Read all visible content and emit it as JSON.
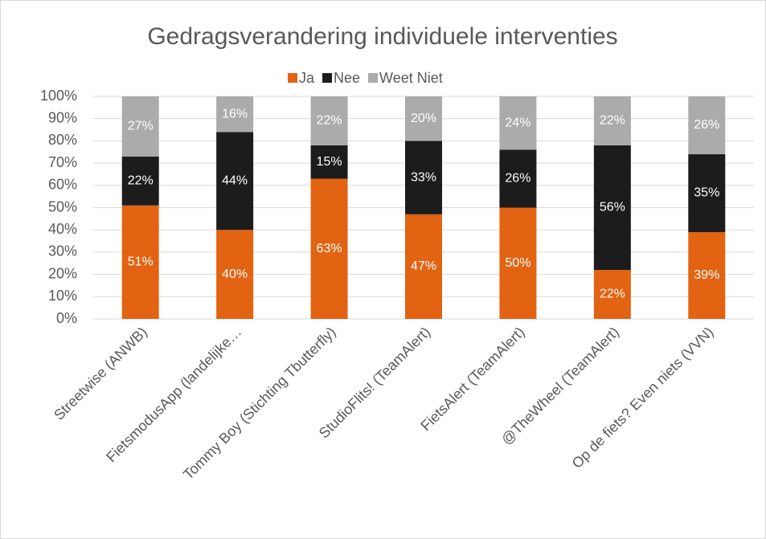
{
  "chart_data": {
    "type": "stacked_bar",
    "title": "Gedragsverandering individuele interventies",
    "categories": [
      "Streetwise (ANWB)",
      "FietsmodusApp (landelijke…",
      "Tommy Boy (Stichting Tbutterfly)",
      "StudioFlits! (TeamAlert)",
      "FietsAlert (TeamAlert)",
      "@TheWheel (TeamAlert)",
      "Op de fiets? Even niets (VVN)"
    ],
    "series": [
      {
        "name": "Ja",
        "color": "#e26312",
        "values": [
          51,
          40,
          63,
          47,
          50,
          22,
          39
        ],
        "value_labels": [
          "51%",
          "40%",
          "63%",
          "47%",
          "50%",
          "22%",
          "39%"
        ]
      },
      {
        "name": "Nee",
        "color": "#1c1c1c",
        "values": [
          22,
          44,
          15,
          33,
          26,
          56,
          35
        ],
        "value_labels": [
          "22%",
          "44%",
          "15%",
          "33%",
          "26%",
          "56%",
          "35%"
        ]
      },
      {
        "name": "Weet Niet",
        "color": "#ababab",
        "values": [
          27,
          16,
          22,
          20,
          24,
          22,
          26
        ],
        "value_labels": [
          "27%",
          "16%",
          "22%",
          "20%",
          "24%",
          "22%",
          "26%"
        ]
      }
    ],
    "ylim": [
      0,
      100
    ],
    "yticks": [
      {
        "value": 0,
        "label": "0%"
      },
      {
        "value": 10,
        "label": "10%"
      },
      {
        "value": 20,
        "label": "20%"
      },
      {
        "value": 30,
        "label": "30%"
      },
      {
        "value": 40,
        "label": "40%"
      },
      {
        "value": 50,
        "label": "50%"
      },
      {
        "value": 60,
        "label": "60%"
      },
      {
        "value": 70,
        "label": "70%"
      },
      {
        "value": 80,
        "label": "80%"
      },
      {
        "value": 90,
        "label": "90%"
      },
      {
        "value": 100,
        "label": "100%"
      }
    ],
    "grid": true,
    "legend": "top"
  }
}
